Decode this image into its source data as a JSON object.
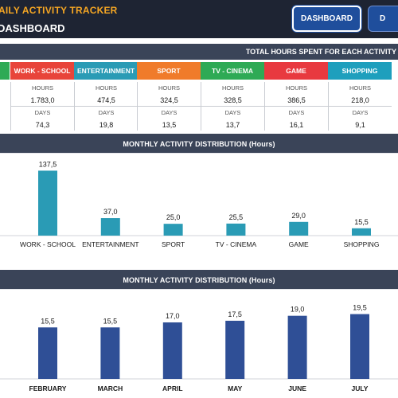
{
  "header": {
    "app_title": "AILY ACTIVITY TRACKER",
    "dashboard_button": "DASHBOARD",
    "second_button": "D",
    "page_heading": "DASHBOARD"
  },
  "totals": {
    "title": "TOTAL HOURS SPENT FOR EACH ACTIVITY",
    "hours_label": "HOURS",
    "days_label": "DAYS",
    "columns": [
      {
        "name": "WORK - SCHOOL",
        "color": "#e8443a",
        "hours": "1.783,0",
        "days": "74,3"
      },
      {
        "name": "ENTERTAINMENT",
        "color": "#2a9bb5",
        "hours": "474,5",
        "days": "19,8"
      },
      {
        "name": "SPORT",
        "color": "#f07b2a",
        "hours": "324,5",
        "days": "13,5"
      },
      {
        "name": "TV - CINEMA",
        "color": "#2eaa55",
        "hours": "328,5",
        "days": "13,7"
      },
      {
        "name": "GAME",
        "color": "#e8393f",
        "hours": "386,5",
        "days": "16,1"
      },
      {
        "name": "SHOPPING",
        "color": "#1e9fbd",
        "hours": "218,0",
        "days": "9,1"
      }
    ]
  },
  "chart_data": [
    {
      "type": "bar",
      "title": "MONTHLY ACTIVITY DISTRIBUTION (Hours)",
      "categories": [
        "WORK - SCHOOL",
        "ENTERTAINMENT",
        "SPORT",
        "TV - CINEMA",
        "GAME",
        "SHOPPING"
      ],
      "values": [
        137.5,
        37.0,
        25.0,
        25.5,
        29.0,
        15.5
      ],
      "value_labels": [
        "137,5",
        "37,0",
        "25,0",
        "25,5",
        "29,0",
        "15,5"
      ],
      "color": "#2a9bb5",
      "ylim": [
        0,
        150
      ],
      "grid": false,
      "legend": "none"
    },
    {
      "type": "bar",
      "title": "MONTHLY ACTIVITY DISTRIBUTION (Hours)",
      "categories": [
        "FEBRUARY",
        "MARCH",
        "APRIL",
        "MAY",
        "JUNE",
        "JULY"
      ],
      "values": [
        15.5,
        15.5,
        17.0,
        17.5,
        19.0,
        19.5
      ],
      "value_labels": [
        "15,5",
        "15,5",
        "17,0",
        "17,5",
        "19,0",
        "19,5"
      ],
      "color": "#2f4f96",
      "ylim": [
        0,
        23
      ],
      "grid": false,
      "legend": "none"
    }
  ]
}
